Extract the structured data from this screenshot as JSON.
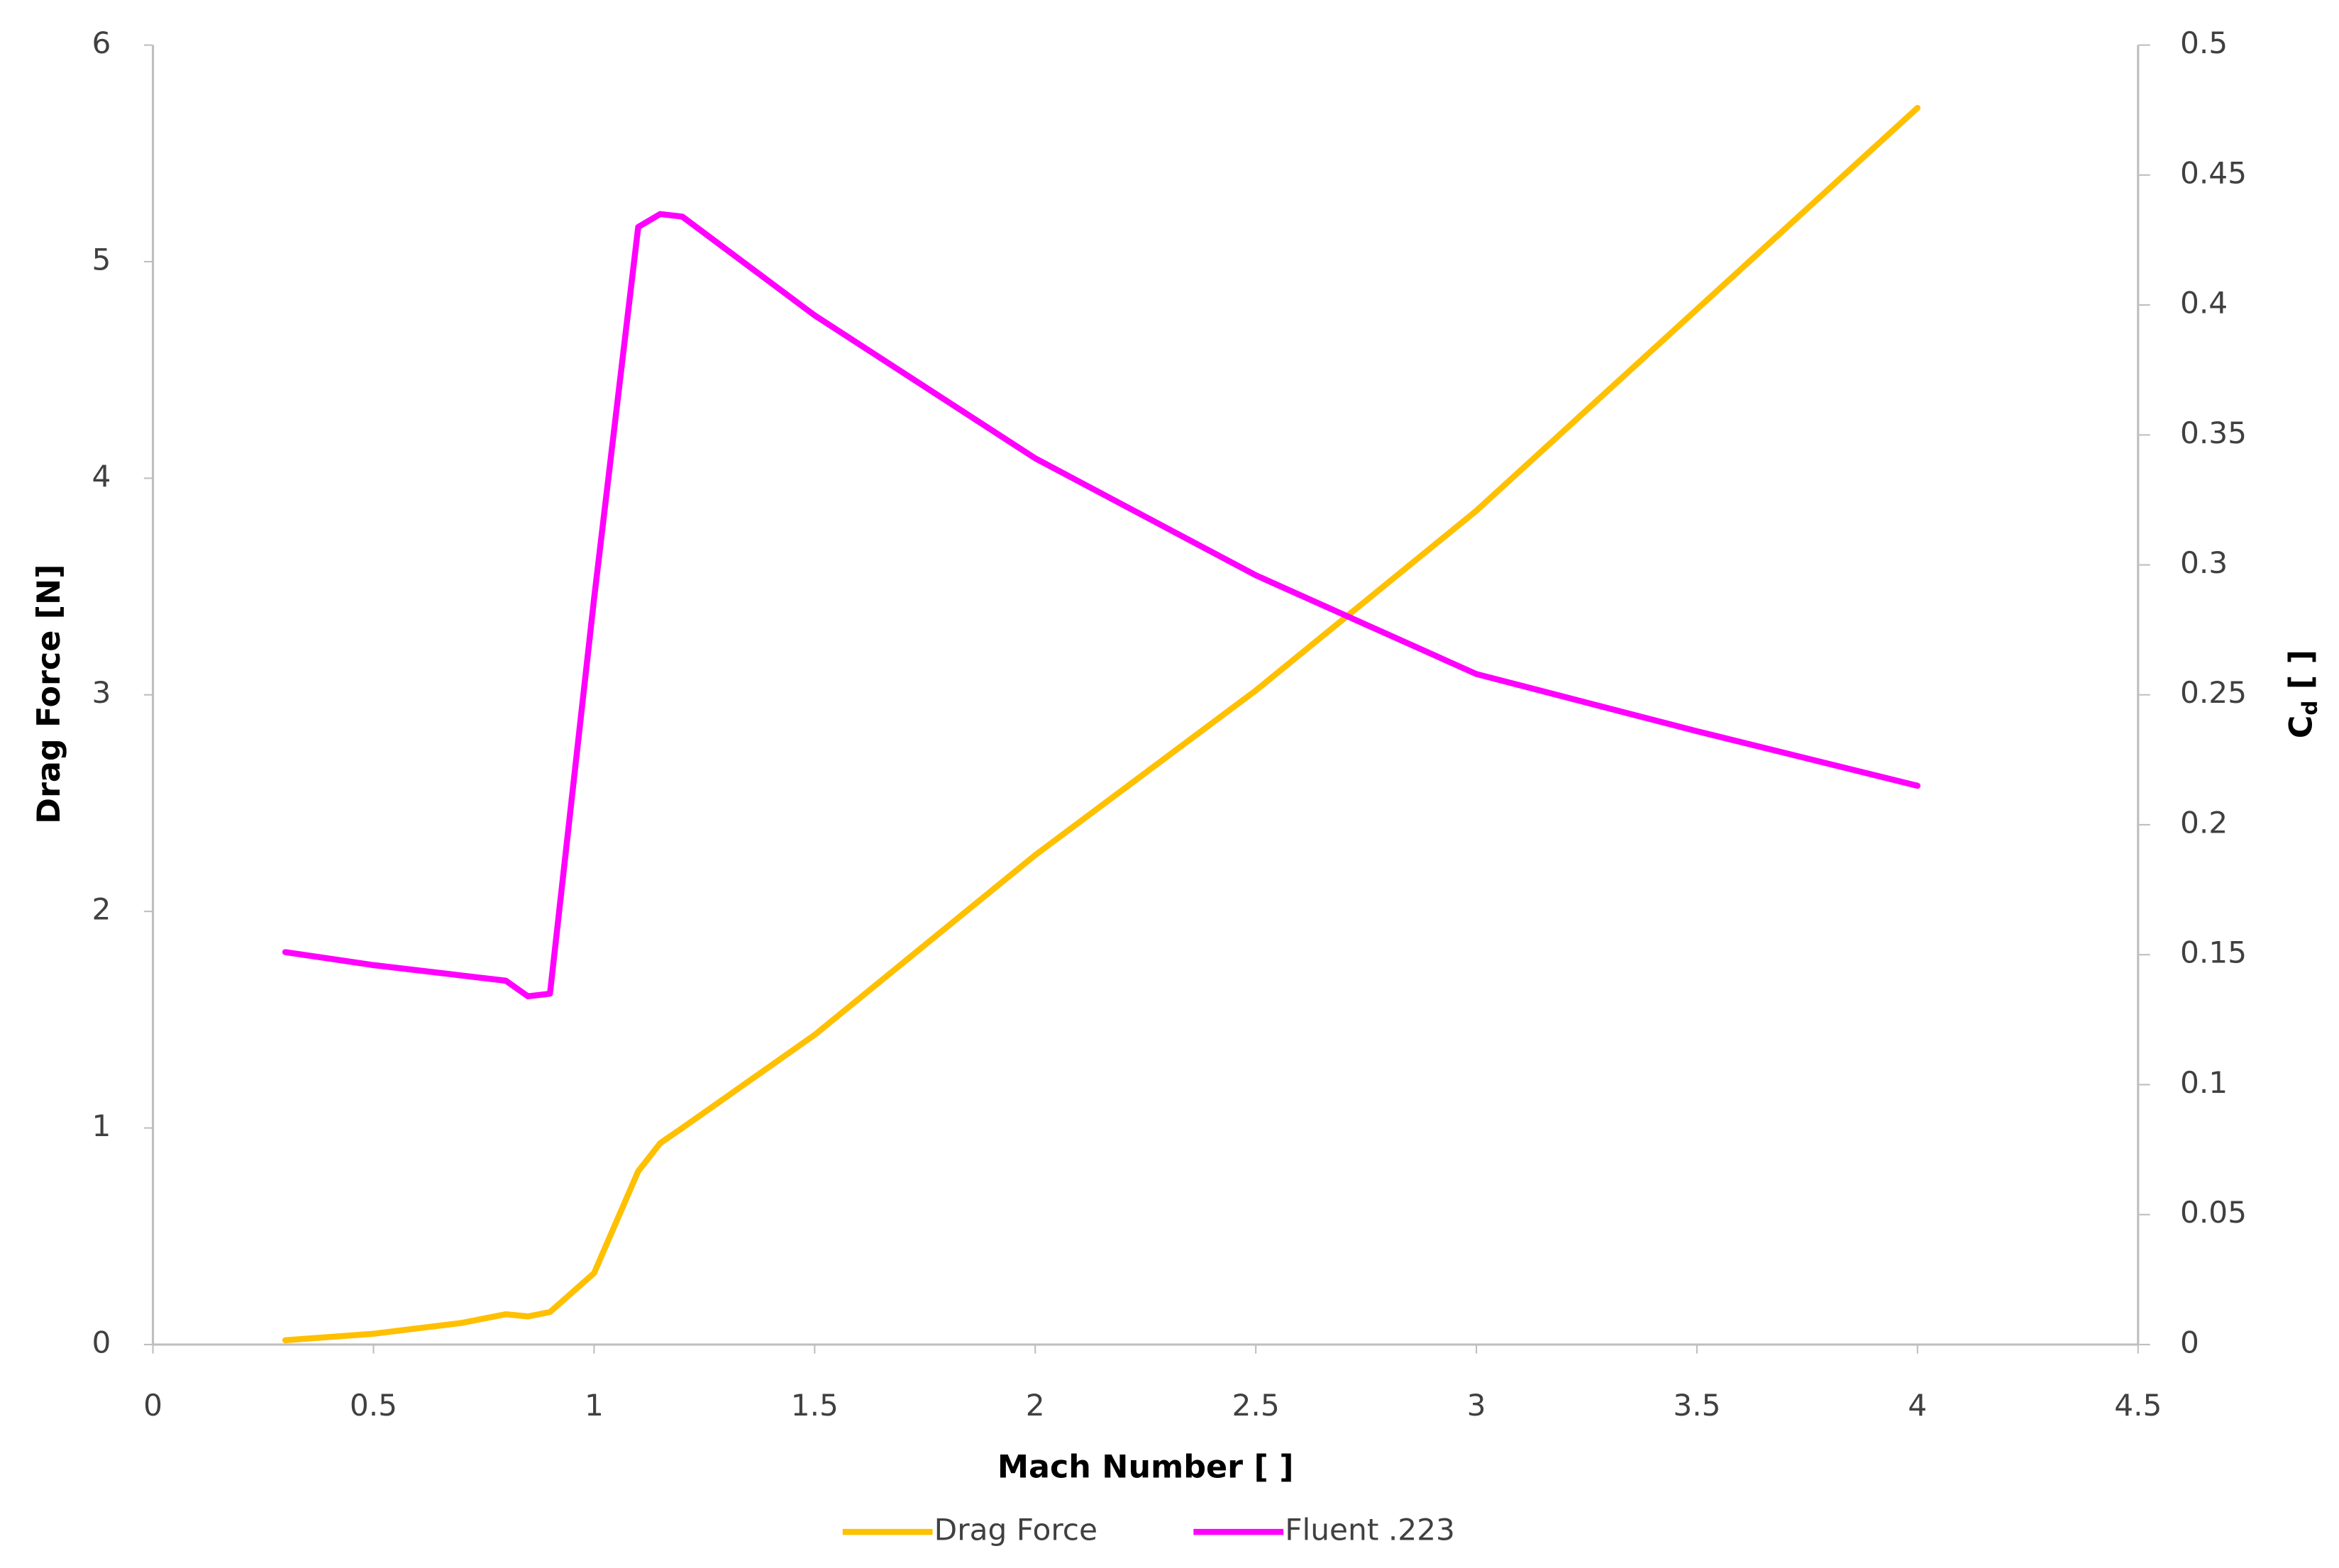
{
  "chart_data": {
    "type": "line",
    "xlabel": "Mach Number [ ]",
    "ylabel": "Drag Force [N]",
    "y2label": {
      "base": "C",
      "sub": "d",
      "suffix": " [ ]"
    },
    "x": [
      0.3,
      0.5,
      0.7,
      0.8,
      0.85,
      0.9,
      1.0,
      1.1,
      1.15,
      1.2,
      1.5,
      2,
      2.5,
      3,
      3.5,
      4
    ],
    "series": [
      {
        "name": "Drag Force",
        "color": "#ffc000",
        "axis": "y",
        "values": [
          0.02,
          0.05,
          0.1,
          0.14,
          0.13,
          0.15,
          0.33,
          0.8,
          0.93,
          1.0,
          1.43,
          2.26,
          3.02,
          3.85,
          4.78,
          5.71
        ]
      },
      {
        "name": "Fluent .223",
        "color": "#ff00ff",
        "axis": "y2",
        "values": [
          0.151,
          0.146,
          0.142,
          0.14,
          0.134,
          0.135,
          0.287,
          0.43,
          0.435,
          0.434,
          0.396,
          0.341,
          0.296,
          0.258,
          0.236,
          0.215
        ]
      }
    ],
    "xlim": [
      0,
      4.5
    ],
    "xticks": [
      0,
      0.5,
      1,
      1.5,
      2,
      2.5,
      3,
      3.5,
      4,
      4.5
    ],
    "ylim": [
      0,
      6
    ],
    "yticks": [
      0,
      1,
      2,
      3,
      4,
      5,
      6
    ],
    "y2lim": [
      0,
      0.5
    ],
    "y2ticks": [
      0,
      0.05,
      0.1,
      0.15,
      0.2,
      0.25,
      0.3,
      0.35,
      0.4,
      0.45,
      0.5
    ],
    "grid": false,
    "legend": "bottom"
  }
}
